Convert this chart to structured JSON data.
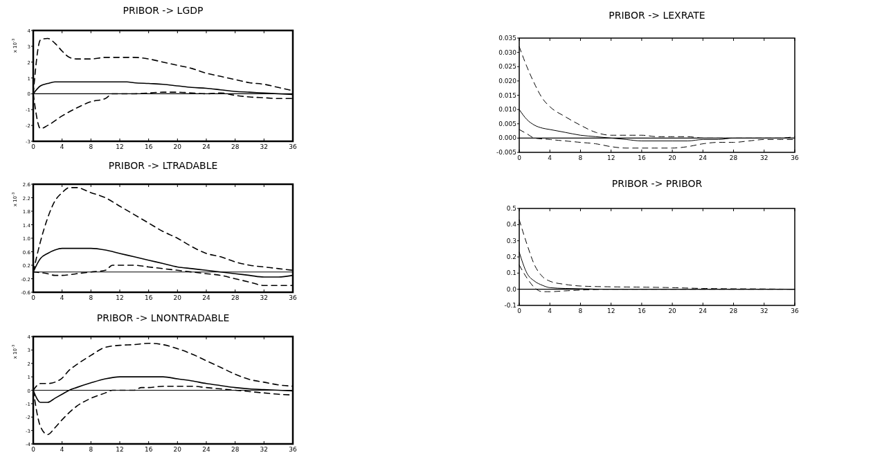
{
  "chart_data": [
    {
      "type": "line",
      "title": "PRIBOR -> LGDP",
      "ylabel": "x 10$^{-3}$",
      "xlim": [
        0,
        36
      ],
      "xticks": [
        0,
        4,
        8,
        12,
        16,
        20,
        24,
        28,
        32,
        36
      ],
      "ylim": [
        -3,
        4
      ],
      "yticks": [
        -3,
        -2,
        -1,
        0,
        1,
        2,
        3,
        4
      ],
      "ref_lines": [
        {
          "axis": "y",
          "value": 0,
          "color": "#000000"
        }
      ],
      "series": [
        {
          "color": "#000000",
          "line_style": "solid",
          "x": [
            0,
            1,
            2,
            3,
            4,
            13,
            14,
            16,
            18,
            20,
            22,
            24,
            26,
            28,
            30,
            32,
            34,
            36
          ],
          "values": [
            0,
            0.5,
            0.65,
            0.75,
            0.75,
            0.75,
            0.7,
            0.65,
            0.6,
            0.5,
            0.4,
            0.35,
            0.25,
            0.15,
            0.1,
            0.05,
            0,
            -0.05
          ]
        },
        {
          "color": "#000000",
          "line_style": "dashed",
          "x": [
            0,
            1,
            2,
            3,
            4,
            5,
            6,
            8,
            10,
            12,
            14,
            16,
            18,
            20,
            22,
            24,
            26,
            28,
            30,
            32,
            34,
            36
          ],
          "values": [
            0,
            3.4,
            3.5,
            3.2,
            2.7,
            2.3,
            2.2,
            2.2,
            2.3,
            2.3,
            2.3,
            2.2,
            2.0,
            1.8,
            1.6,
            1.3,
            1.1,
            0.9,
            0.7,
            0.6,
            0.4,
            0.2
          ]
        },
        {
          "color": "#000000",
          "line_style": "dashed",
          "x": [
            0,
            1,
            2,
            4,
            6,
            8,
            10,
            11,
            12,
            14,
            16,
            18,
            20,
            22,
            24,
            26,
            28,
            30,
            32,
            34,
            36
          ],
          "values": [
            0,
            -2.2,
            -2.0,
            -1.4,
            -0.9,
            -0.5,
            -0.3,
            0,
            0,
            0,
            0.05,
            0.1,
            0.1,
            0.05,
            0,
            0.05,
            -0.1,
            -0.2,
            -0.25,
            -0.3,
            -0.3
          ]
        }
      ]
    },
    {
      "type": "line",
      "title": "PRIBOR -> LTRADABLE",
      "ylabel": "x 10$^{-3}$",
      "xlim": [
        0,
        36
      ],
      "xticks": [
        0,
        4,
        8,
        12,
        16,
        20,
        24,
        28,
        32,
        36
      ],
      "ylim": [
        -0.6,
        2.6
      ],
      "yticks": [
        -0.6,
        -0.2,
        0.2,
        0.6,
        {
          "value": 1,
          "label": "1.0"
        },
        1.4,
        1.8,
        2.2,
        2.6
      ],
      "ref_lines": [
        {
          "axis": "y",
          "value": 0,
          "color": "#000000"
        }
      ],
      "series": [
        {
          "color": "#000000",
          "line_style": "solid",
          "x": [
            0,
            1,
            2,
            3,
            4,
            8,
            10,
            12,
            14,
            16,
            18,
            20,
            22,
            24,
            26,
            28,
            30,
            32,
            34,
            36
          ],
          "values": [
            0,
            0.4,
            0.55,
            0.65,
            0.7,
            0.7,
            0.65,
            0.55,
            0.45,
            0.35,
            0.25,
            0.15,
            0.1,
            0.05,
            0,
            -0.05,
            -0.1,
            -0.15,
            -0.15,
            -0.1
          ]
        },
        {
          "color": "#000000",
          "line_style": "dashed",
          "x": [
            0,
            1,
            2,
            3,
            4,
            5,
            6,
            8,
            10,
            12,
            14,
            16,
            18,
            20,
            22,
            24,
            26,
            28,
            30,
            32,
            34,
            36
          ],
          "values": [
            0,
            0.9,
            1.6,
            2.1,
            2.35,
            2.5,
            2.5,
            2.35,
            2.2,
            1.95,
            1.7,
            1.45,
            1.2,
            1.0,
            0.75,
            0.55,
            0.45,
            0.3,
            0.2,
            0.15,
            0.1,
            0.05
          ]
        },
        {
          "color": "#000000",
          "line_style": "dashed",
          "x": [
            0,
            2,
            3,
            4,
            6,
            8,
            10,
            11,
            12,
            14,
            16,
            18,
            20,
            22,
            24,
            26,
            28,
            30,
            32,
            34,
            36
          ],
          "values": [
            0,
            -0.05,
            -0.1,
            -0.1,
            -0.05,
            0,
            0.05,
            0.2,
            0.2,
            0.2,
            0.15,
            0.1,
            0.05,
            0,
            -0.05,
            -0.1,
            -0.2,
            -0.3,
            -0.4,
            -0.4,
            -0.4
          ]
        }
      ]
    },
    {
      "type": "line",
      "title": "PRIBOR -> LNONTRADABLE",
      "ylabel": "x 10$^{-3}$",
      "xlim": [
        0,
        36
      ],
      "xticks": [
        0,
        4,
        8,
        12,
        16,
        20,
        24,
        28,
        32,
        36
      ],
      "ylim": [
        -4,
        4
      ],
      "yticks": [
        -4,
        -3,
        -2,
        -1,
        0,
        1,
        2,
        3,
        4
      ],
      "ref_lines": [
        {
          "axis": "y",
          "value": 0,
          "color": "#000000"
        }
      ],
      "series": [
        {
          "color": "#000000",
          "line_style": "solid",
          "x": [
            0,
            1,
            2,
            3,
            4,
            5,
            6,
            8,
            10,
            12,
            14,
            16,
            18,
            20,
            22,
            24,
            26,
            28,
            30,
            32,
            34,
            36
          ],
          "values": [
            0,
            -0.9,
            -0.9,
            -0.6,
            -0.3,
            0,
            0.2,
            0.55,
            0.85,
            1.0,
            1.0,
            1.0,
            1.0,
            0.85,
            0.7,
            0.5,
            0.35,
            0.2,
            0.1,
            0.05,
            0,
            -0.05
          ]
        },
        {
          "color": "#000000",
          "line_style": "dashed",
          "x": [
            0,
            1,
            2,
            3,
            4,
            5,
            6,
            8,
            10,
            12,
            14,
            16,
            18,
            20,
            22,
            24,
            26,
            28,
            30,
            32,
            34,
            36
          ],
          "values": [
            0,
            0.5,
            0.5,
            0.6,
            0.9,
            1.5,
            1.9,
            2.6,
            3.2,
            3.35,
            3.4,
            3.5,
            3.4,
            3.1,
            2.7,
            2.2,
            1.7,
            1.2,
            0.8,
            0.6,
            0.4,
            0.3
          ]
        },
        {
          "color": "#000000",
          "line_style": "dashed",
          "x": [
            0,
            1,
            2,
            3,
            4,
            6,
            8,
            10,
            11,
            12,
            14,
            15,
            16,
            18,
            20,
            22,
            24,
            26,
            28,
            30,
            32,
            34,
            36
          ],
          "values": [
            0,
            -2.7,
            -3.3,
            -2.8,
            -2.2,
            -1.2,
            -0.6,
            -0.2,
            0,
            0,
            0,
            0.2,
            0.2,
            0.3,
            0.3,
            0.3,
            0.2,
            0.1,
            0,
            -0.1,
            -0.2,
            -0.3,
            -0.35
          ]
        }
      ]
    },
    {
      "type": "line",
      "title": "PRIBOR -> LEXRATE",
      "xlim": [
        0,
        36
      ],
      "xticks": [
        0,
        4,
        8,
        12,
        16,
        20,
        24,
        28,
        32,
        36
      ],
      "ylim": [
        -0.005,
        0.035
      ],
      "yticks": [
        {
          "value": -0.005,
          "label": "-0.005"
        },
        {
          "value": 0,
          "label": "0.000"
        },
        {
          "value": 0.005,
          "label": "0.005"
        },
        {
          "value": 0.01,
          "label": "0.010"
        },
        {
          "value": 0.015,
          "label": "0.015"
        },
        {
          "value": 0.02,
          "label": "0.020"
        },
        {
          "value": 0.025,
          "label": "0.025"
        },
        {
          "value": 0.03,
          "label": "0.030"
        },
        {
          "value": 0.035,
          "label": "0.035"
        }
      ],
      "ref_lines": [
        {
          "axis": "y",
          "value": 0,
          "color": "#000000"
        }
      ],
      "series": [
        {
          "color": "#000000",
          "line_style": "solid",
          "x": [
            0,
            1,
            2,
            3,
            4,
            6,
            8,
            10,
            12,
            14,
            16,
            18,
            20,
            22,
            24,
            26,
            28,
            30,
            32,
            34,
            36
          ],
          "values": [
            0.01,
            0.0065,
            0.0045,
            0.0035,
            0.003,
            0.002,
            0.001,
            0.0005,
            0,
            -0.0005,
            -0.001,
            -0.001,
            -0.001,
            -0.001,
            -0.0005,
            -0.0005,
            0,
            0,
            0,
            0,
            0
          ]
        },
        {
          "color": "#000000",
          "line_style": "dashed",
          "x": [
            0,
            1,
            2,
            3,
            4,
            6,
            8,
            10,
            12,
            14,
            16,
            18,
            20,
            22,
            24,
            26,
            28,
            30,
            32,
            34,
            36
          ],
          "values": [
            0.032,
            0.025,
            0.019,
            0.014,
            0.011,
            0.0075,
            0.0045,
            0.002,
            0.001,
            0.001,
            0.001,
            0.0005,
            0.0005,
            0.0005,
            0,
            0,
            0,
            0,
            0,
            0,
            0.0005
          ]
        },
        {
          "color": "#000000",
          "line_style": "dashed",
          "x": [
            0,
            1,
            2,
            4,
            6,
            8,
            10,
            12,
            14,
            16,
            18,
            20,
            22,
            24,
            26,
            28,
            30,
            32,
            34,
            36
          ],
          "values": [
            0.003,
            0.0015,
            0,
            -0.0005,
            -0.001,
            -0.0015,
            -0.002,
            -0.003,
            -0.0035,
            -0.0035,
            -0.0035,
            -0.0035,
            -0.003,
            -0.002,
            -0.0015,
            -0.0015,
            -0.001,
            -0.0005,
            -0.0005,
            -0.0005
          ]
        }
      ]
    },
    {
      "type": "line",
      "title": "PRIBOR -> PRIBOR",
      "xlim": [
        0,
        36
      ],
      "xticks": [
        0,
        4,
        8,
        12,
        16,
        20,
        24,
        28,
        32,
        36
      ],
      "ylim": [
        -0.1,
        0.5
      ],
      "yticks": [
        -0.1,
        {
          "value": 0,
          "label": "0.0"
        },
        0.1,
        0.2,
        0.3,
        0.4,
        0.5
      ],
      "ref_lines": [
        {
          "axis": "y",
          "value": 0,
          "color": "#000000"
        }
      ],
      "series": [
        {
          "color": "#000000",
          "line_style": "solid",
          "x": [
            0,
            1,
            2,
            3,
            4,
            6,
            8,
            12,
            36
          ],
          "values": [
            0.23,
            0.1,
            0.05,
            0.025,
            0.01,
            0.005,
            0.003,
            0,
            0
          ]
        },
        {
          "color": "#000000",
          "line_style": "dashed",
          "x": [
            0,
            1,
            2,
            3,
            4,
            6,
            8,
            12,
            16,
            20,
            24,
            28,
            32,
            36
          ],
          "values": [
            0.43,
            0.28,
            0.15,
            0.08,
            0.05,
            0.03,
            0.02,
            0.015,
            0.013,
            0.01,
            0.005,
            0.003,
            0.002,
            0
          ]
        },
        {
          "color": "#000000",
          "line_style": "dashed",
          "x": [
            0,
            1,
            2,
            3,
            4,
            6,
            8,
            12,
            36
          ],
          "values": [
            0.15,
            0.07,
            0.01,
            -0.015,
            -0.015,
            -0.01,
            -0.005,
            0,
            0
          ]
        }
      ]
    }
  ]
}
